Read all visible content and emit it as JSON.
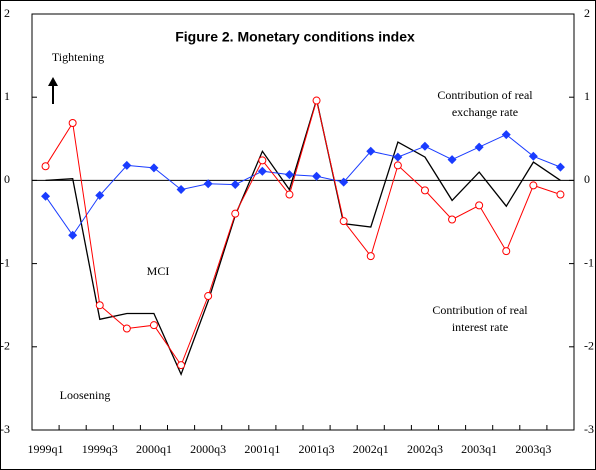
{
  "chart_data": {
    "type": "line",
    "title": "Figure 2. Monetary conditions index",
    "annotations": [
      [
        "Tightening"
      ],
      [
        "Contribution of real",
        "exchange rate"
      ],
      [
        "MCI"
      ],
      [
        "Contribution of real",
        "interest rate"
      ],
      [
        "Loosening"
      ]
    ],
    "categories": [
      "1999q1",
      null,
      "1999q3",
      null,
      "2000q1",
      null,
      "2000q3",
      null,
      "2001q1",
      null,
      "2001q3",
      null,
      "2002q1",
      null,
      "2002q3",
      null,
      "2003q1",
      null,
      "2003q3",
      null
    ],
    "ylim": [
      -3,
      2
    ],
    "yticks": [
      -3,
      -2,
      -1,
      0,
      1,
      2
    ],
    "y2lim": [
      -3,
      2
    ],
    "y2ticks": [
      -3,
      -2,
      -1,
      0,
      1,
      2
    ],
    "series": [
      {
        "color": "#000000",
        "marker": "none",
        "values": [
          0,
          0.02,
          -1.67,
          -1.6,
          -1.6,
          -2.33,
          -1.45,
          -0.42,
          0.35,
          -0.11,
          0.97,
          -0.52,
          -0.56,
          0.46,
          0.28,
          -0.24,
          0.1,
          -0.31,
          0.22,
          0
        ]
      },
      {
        "color": "#1a3cff",
        "marker": "diamond",
        "values": [
          -0.19,
          -0.66,
          -0.18,
          0.18,
          0.15,
          -0.11,
          -0.04,
          -0.05,
          0.11,
          0.07,
          0.05,
          -0.02,
          0.35,
          0.28,
          0.41,
          0.25,
          0.4,
          0.55,
          0.29,
          0.16
        ]
      },
      {
        "color": "#ff0000",
        "marker": "circle",
        "values": [
          0.17,
          0.69,
          -1.5,
          -1.78,
          -1.74,
          -2.22,
          -1.39,
          -0.4,
          0.24,
          -0.17,
          0.96,
          -0.49,
          -0.91,
          0.18,
          -0.12,
          -0.47,
          -0.3,
          -0.85,
          -0.06,
          -0.17
        ]
      }
    ]
  }
}
